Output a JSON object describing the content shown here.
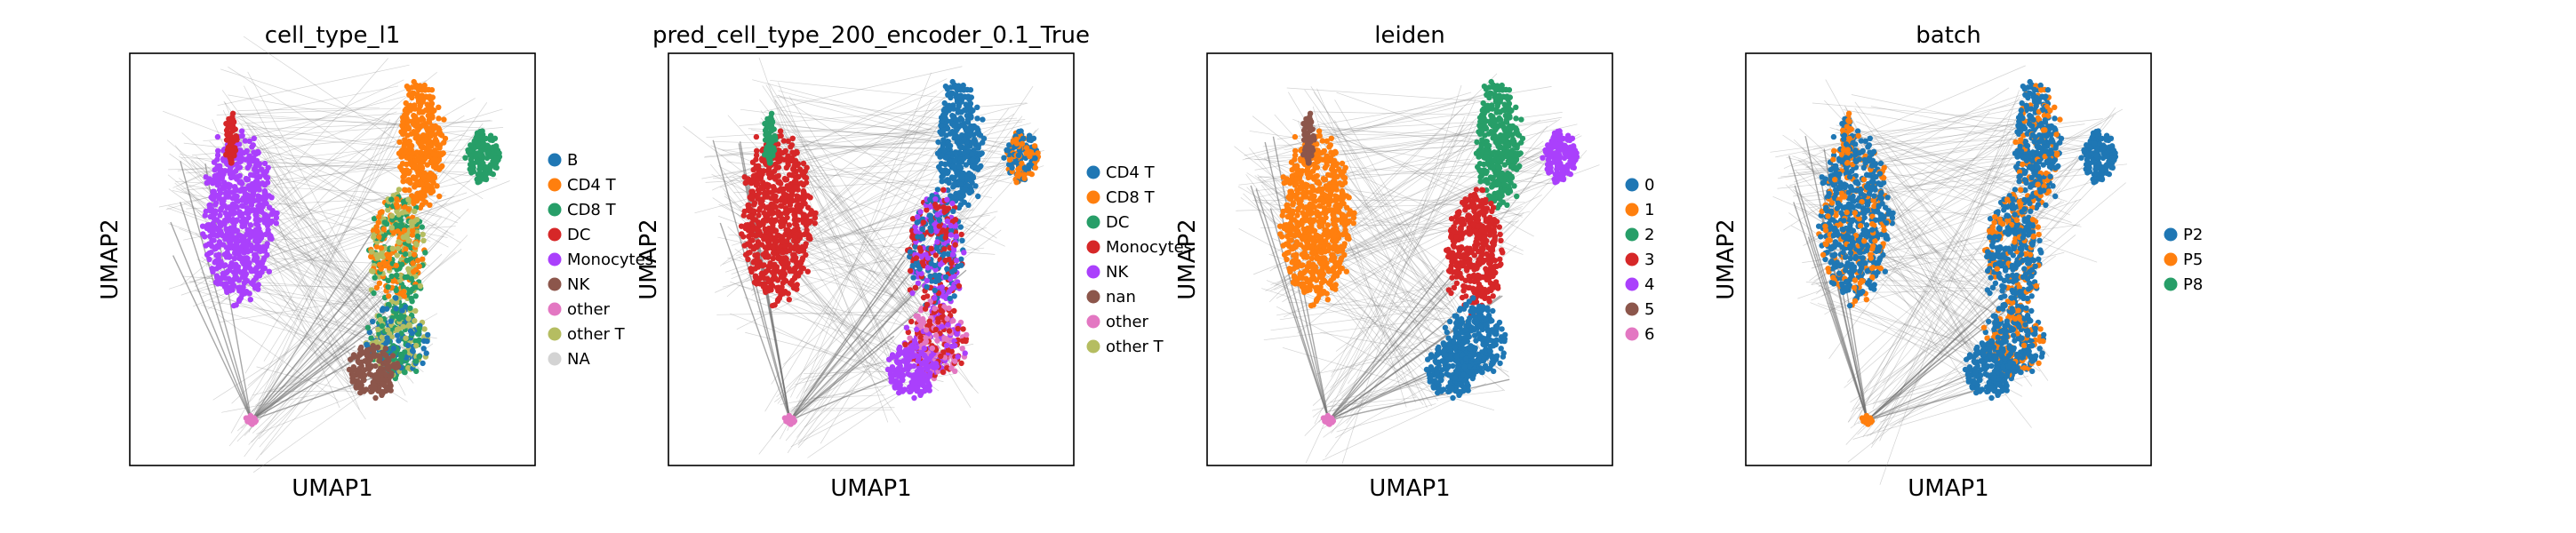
{
  "chart_data": [
    {
      "type": "scatter",
      "title": "cell_type_l1",
      "xlabel": "UMAP1",
      "ylabel": "UMAP2",
      "legend": [
        "B",
        "CD4 T",
        "CD8 T",
        "DC",
        "Monocytes",
        "NK",
        "other",
        "other T",
        "NA"
      ],
      "colors": [
        "#1f77b4",
        "#ff7f0e",
        "#279e68",
        "#d62728",
        "#aa40fc",
        "#8c564b",
        "#e377c2",
        "#b5bd61",
        "#d3d3d3"
      ]
    },
    {
      "type": "scatter",
      "title": "pred_cell_type_200_encoder_0.1_True",
      "xlabel": "UMAP1",
      "ylabel": "UMAP2",
      "legend": [
        "CD4 T",
        "CD8 T",
        "DC",
        "Monocytes",
        "NK",
        "nan",
        "other",
        "other T"
      ],
      "colors": [
        "#1f77b4",
        "#ff7f0e",
        "#279e68",
        "#d62728",
        "#aa40fc",
        "#8c564b",
        "#e377c2",
        "#b5bd61"
      ]
    },
    {
      "type": "scatter",
      "title": "leiden",
      "xlabel": "UMAP1",
      "ylabel": "UMAP2",
      "legend": [
        "0",
        "1",
        "2",
        "3",
        "4",
        "5",
        "6"
      ],
      "colors": [
        "#1f77b4",
        "#ff7f0e",
        "#279e68",
        "#d62728",
        "#aa40fc",
        "#8c564b",
        "#e377c2"
      ]
    },
    {
      "type": "scatter",
      "title": "batch",
      "xlabel": "UMAP1",
      "ylabel": "UMAP2",
      "legend": [
        "P2",
        "P5",
        "P8"
      ],
      "colors": [
        "#1f77b4",
        "#ff7f0e",
        "#279e68"
      ]
    }
  ]
}
